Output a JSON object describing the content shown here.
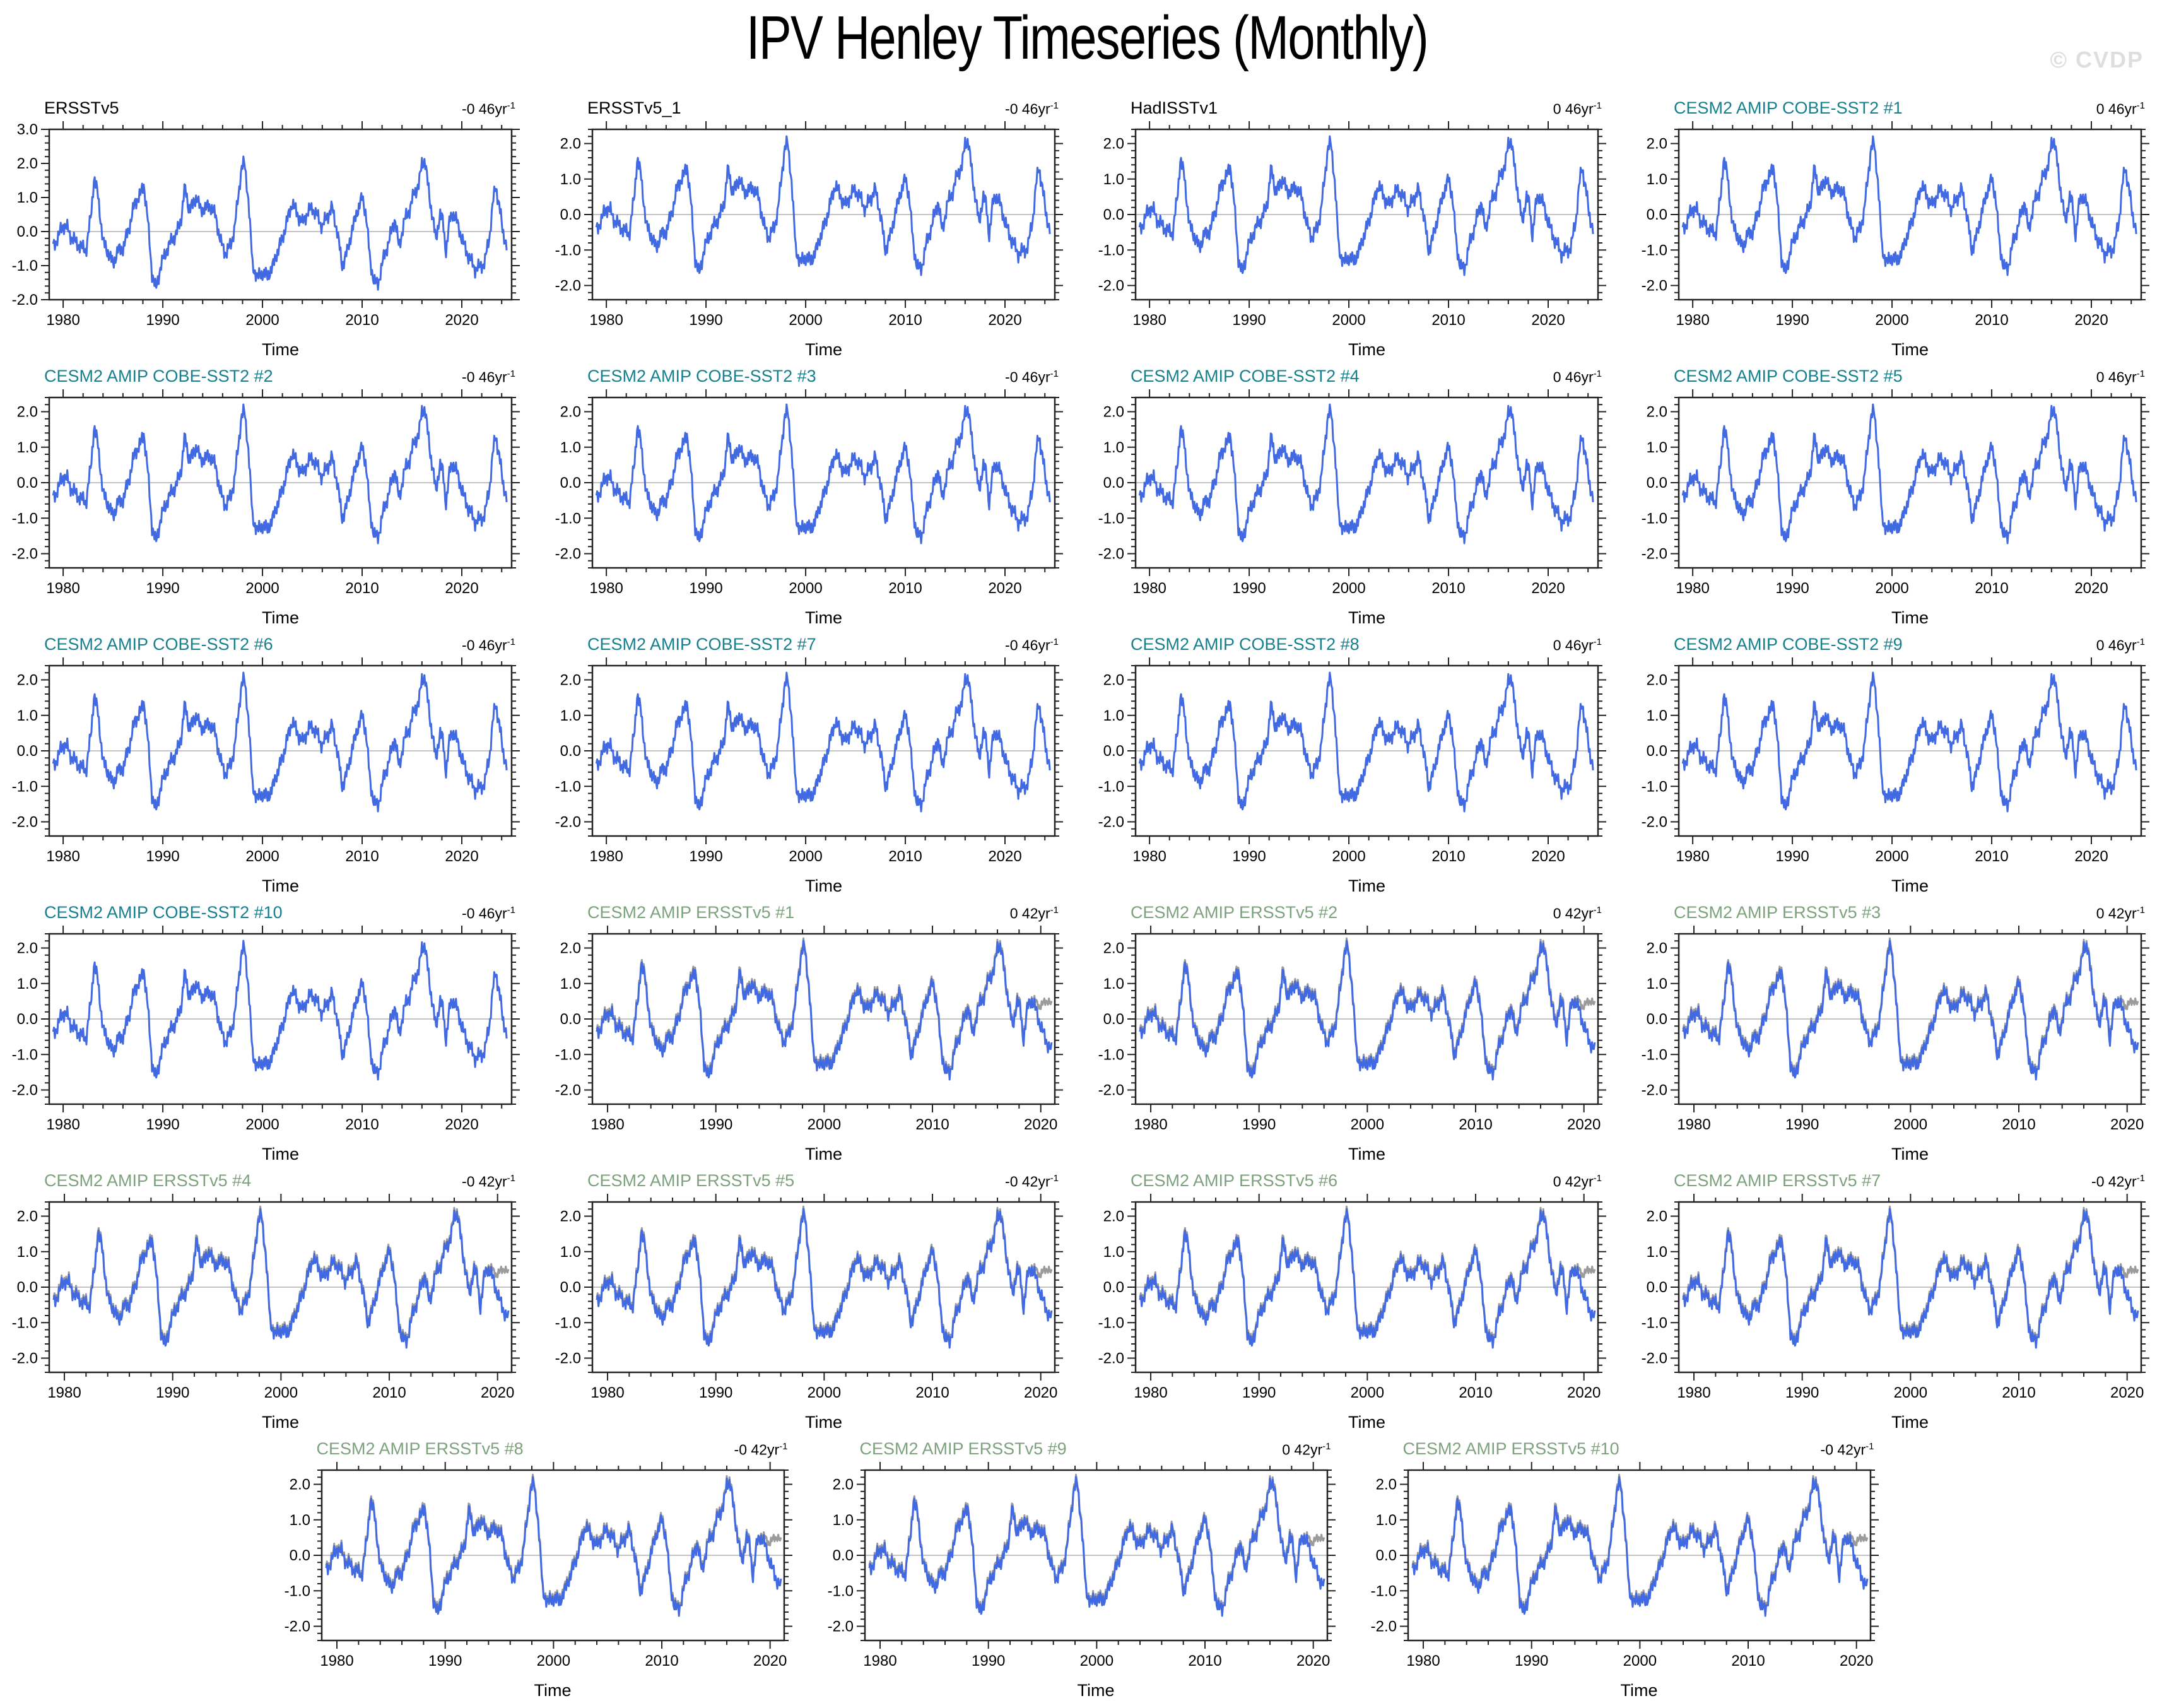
{
  "page": {
    "title": "IPV Henley Timeseries (Monthly)",
    "watermark": "© CVDP"
  },
  "colors": {
    "obs_title": "#000000",
    "cobe_title": "#16808F",
    "ersst_title": "#7DA27D",
    "series_line": "#4169E1",
    "obs_line": "#9B9B9B",
    "zero_line": "#B0B0B0",
    "frame": "#222222",
    "watermark": "#DEDEDE"
  },
  "axis": {
    "xlabel": "Time",
    "x_major_ticks": [
      1980,
      1990,
      2000,
      2010,
      2020
    ],
    "x_minor_step": 2,
    "y_major_step": 1.0,
    "y_minor_step": 0.2,
    "trend_unit": "yr",
    "trend_exp": "-1",
    "x_range_obs": [
      1978.6,
      2025.0
    ],
    "x_range_amip": [
      1978.6,
      2021.3
    ]
  },
  "panels": [
    {
      "title": "ERSSTv5",
      "color_key": "obs_title",
      "trend": "-0 46",
      "y_ticks": [
        3,
        2,
        1,
        0,
        -1,
        -2
      ],
      "ylim": [
        -2.0,
        3.0
      ],
      "group": "A"
    },
    {
      "title": "ERSSTv5_1",
      "color_key": "obs_title",
      "trend": "-0 46",
      "y_ticks": [
        2,
        1,
        0,
        -1,
        -2
      ],
      "ylim": [
        -2.4,
        2.4
      ],
      "group": "A"
    },
    {
      "title": "HadISSTv1",
      "color_key": "obs_title",
      "trend": "0 46",
      "y_ticks": [
        2,
        1,
        0,
        -1,
        -2
      ],
      "ylim": [
        -2.4,
        2.4
      ],
      "group": "A"
    },
    {
      "title": "CESM2 AMIP COBE-SST2 #1",
      "color_key": "cobe_title",
      "trend": "0 46",
      "y_ticks": [
        2,
        1,
        0,
        -1,
        -2
      ],
      "ylim": [
        -2.4,
        2.4
      ],
      "group": "A"
    },
    {
      "title": "CESM2 AMIP COBE-SST2 #2",
      "color_key": "cobe_title",
      "trend": "-0 46",
      "y_ticks": [
        2,
        1,
        0,
        -1,
        -2
      ],
      "ylim": [
        -2.4,
        2.4
      ],
      "group": "A"
    },
    {
      "title": "CESM2 AMIP COBE-SST2 #3",
      "color_key": "cobe_title",
      "trend": "-0 46",
      "y_ticks": [
        2,
        1,
        0,
        -1,
        -2
      ],
      "ylim": [
        -2.4,
        2.4
      ],
      "group": "A"
    },
    {
      "title": "CESM2 AMIP COBE-SST2 #4",
      "color_key": "cobe_title",
      "trend": "0 46",
      "y_ticks": [
        2,
        1,
        0,
        -1,
        -2
      ],
      "ylim": [
        -2.4,
        2.4
      ],
      "group": "A"
    },
    {
      "title": "CESM2 AMIP COBE-SST2 #5",
      "color_key": "cobe_title",
      "trend": "0 46",
      "y_ticks": [
        2,
        1,
        0,
        -1,
        -2
      ],
      "ylim": [
        -2.4,
        2.4
      ],
      "group": "A"
    },
    {
      "title": "CESM2 AMIP COBE-SST2 #6",
      "color_key": "cobe_title",
      "trend": "-0 46",
      "y_ticks": [
        2,
        1,
        0,
        -1,
        -2
      ],
      "ylim": [
        -2.4,
        2.4
      ],
      "group": "A"
    },
    {
      "title": "CESM2 AMIP COBE-SST2 #7",
      "color_key": "cobe_title",
      "trend": "-0 46",
      "y_ticks": [
        2,
        1,
        0,
        -1,
        -2
      ],
      "ylim": [
        -2.4,
        2.4
      ],
      "group": "A"
    },
    {
      "title": "CESM2 AMIP COBE-SST2 #8",
      "color_key": "cobe_title",
      "trend": "0 46",
      "y_ticks": [
        2,
        1,
        0,
        -1,
        -2
      ],
      "ylim": [
        -2.4,
        2.4
      ],
      "group": "A"
    },
    {
      "title": "CESM2 AMIP COBE-SST2 #9",
      "color_key": "cobe_title",
      "trend": "0 46",
      "y_ticks": [
        2,
        1,
        0,
        -1,
        -2
      ],
      "ylim": [
        -2.4,
        2.4
      ],
      "group": "A"
    },
    {
      "title": "CESM2 AMIP COBE-SST2 #10",
      "color_key": "cobe_title",
      "trend": "-0 46",
      "y_ticks": [
        2,
        1,
        0,
        -1,
        -2
      ],
      "ylim": [
        -2.4,
        2.4
      ],
      "group": "A"
    },
    {
      "title": "CESM2 AMIP ERSSTv5 #1",
      "color_key": "ersst_title",
      "trend": "0 42",
      "y_ticks": [
        2,
        1,
        0,
        -1,
        -2
      ],
      "ylim": [
        -2.4,
        2.4
      ],
      "group": "B"
    },
    {
      "title": "CESM2 AMIP ERSSTv5 #2",
      "color_key": "ersst_title",
      "trend": "0 42",
      "y_ticks": [
        2,
        1,
        0,
        -1,
        -2
      ],
      "ylim": [
        -2.4,
        2.4
      ],
      "group": "B"
    },
    {
      "title": "CESM2 AMIP ERSSTv5 #3",
      "color_key": "ersst_title",
      "trend": "0 42",
      "y_ticks": [
        2,
        1,
        0,
        -1,
        -2
      ],
      "ylim": [
        -2.4,
        2.4
      ],
      "group": "B"
    },
    {
      "title": "CESM2 AMIP ERSSTv5 #4",
      "color_key": "ersst_title",
      "trend": "-0 42",
      "y_ticks": [
        2,
        1,
        0,
        -1,
        -2
      ],
      "ylim": [
        -2.4,
        2.4
      ],
      "group": "B"
    },
    {
      "title": "CESM2 AMIP ERSSTv5 #5",
      "color_key": "ersst_title",
      "trend": "-0 42",
      "y_ticks": [
        2,
        1,
        0,
        -1,
        -2
      ],
      "ylim": [
        -2.4,
        2.4
      ],
      "group": "B"
    },
    {
      "title": "CESM2 AMIP ERSSTv5 #6",
      "color_key": "ersst_title",
      "trend": "0 42",
      "y_ticks": [
        2,
        1,
        0,
        -1,
        -2
      ],
      "ylim": [
        -2.4,
        2.4
      ],
      "group": "B"
    },
    {
      "title": "CESM2 AMIP ERSSTv5 #7",
      "color_key": "ersst_title",
      "trend": "-0 42",
      "y_ticks": [
        2,
        1,
        0,
        -1,
        -2
      ],
      "ylim": [
        -2.4,
        2.4
      ],
      "group": "B"
    },
    {
      "title": "CESM2 AMIP ERSSTv5 #8",
      "color_key": "ersst_title",
      "trend": "-0 42",
      "y_ticks": [
        2,
        1,
        0,
        -1,
        -2
      ],
      "ylim": [
        -2.4,
        2.4
      ],
      "group": "B"
    },
    {
      "title": "CESM2 AMIP ERSSTv5 #9",
      "color_key": "ersst_title",
      "trend": "0 42",
      "y_ticks": [
        2,
        1,
        0,
        -1,
        -2
      ],
      "ylim": [
        -2.4,
        2.4
      ],
      "group": "B"
    },
    {
      "title": "CESM2 AMIP ERSSTv5 #10",
      "color_key": "ersst_title",
      "trend": "-0 42",
      "y_ticks": [
        2,
        1,
        0,
        -1,
        -2
      ],
      "ylim": [
        -2.4,
        2.4
      ],
      "group": "B"
    }
  ],
  "rows": [
    4,
    4,
    4,
    4,
    4,
    3
  ],
  "chart_data": {
    "type": "line",
    "title": "IPV Henley Timeseries (Monthly)",
    "xlabel": "Time",
    "ylabel": "",
    "x_tick_labels": [
      1980,
      1990,
      2000,
      2010,
      2020
    ],
    "grid": false,
    "legend": "none",
    "n_panels": 23,
    "base_series": {
      "name": "IPV monthly index (anchor points, fractional year)",
      "x": [
        1979.0,
        1979.5,
        1980.0,
        1980.4,
        1980.8,
        1981.2,
        1981.8,
        1982.3,
        1982.8,
        1983.1,
        1983.5,
        1984.0,
        1984.5,
        1985.0,
        1985.5,
        1986.0,
        1986.6,
        1987.2,
        1987.8,
        1988.1,
        1988.5,
        1988.9,
        1989.3,
        1989.8,
        1990.3,
        1990.8,
        1991.3,
        1991.8,
        1992.2,
        1992.6,
        1993.0,
        1993.4,
        1993.8,
        1994.3,
        1994.8,
        1995.3,
        1995.8,
        1996.3,
        1996.8,
        1997.2,
        1997.6,
        1997.9,
        1998.2,
        1998.6,
        1999.0,
        1999.5,
        2000.0,
        2000.5,
        2001.0,
        2001.5,
        2002.0,
        2002.5,
        2003.0,
        2003.5,
        2004.0,
        2004.5,
        2005.0,
        2005.5,
        2006.0,
        2006.5,
        2007.0,
        2007.5,
        2008.0,
        2008.5,
        2009.0,
        2009.5,
        2010.0,
        2010.4,
        2010.8,
        2011.2,
        2011.6,
        2012.0,
        2012.5,
        2013.0,
        2013.3,
        2013.7,
        2014.2,
        2014.7,
        2015.2,
        2015.7,
        2016.0,
        2016.3,
        2016.8,
        2017.1,
        2017.4,
        2017.8,
        2018.1,
        2018.4,
        2018.8,
        2019.1,
        2019.5,
        2019.9,
        2020.4,
        2020.9,
        2021.3,
        2021.8,
        2022.3,
        2022.8,
        2023.1,
        2023.4,
        2023.8,
        2024.1,
        2024.6
      ],
      "y": [
        -0.45,
        -0.15,
        0.2,
        0.1,
        -0.15,
        -0.3,
        -0.45,
        -0.55,
        0.5,
        1.6,
        1.05,
        -0.3,
        -0.6,
        -0.95,
        -0.55,
        -0.5,
        0.1,
        0.85,
        1.1,
        1.4,
        0.3,
        -1.2,
        -1.7,
        -1.0,
        -0.6,
        -0.3,
        -0.1,
        0.3,
        1.3,
        0.7,
        0.75,
        1.05,
        0.6,
        0.7,
        0.75,
        0.45,
        -0.3,
        -0.65,
        -0.4,
        0.1,
        1.1,
        1.9,
        2.0,
        0.9,
        -1.0,
        -1.35,
        -1.2,
        -1.3,
        -1.05,
        -0.6,
        -0.2,
        0.35,
        0.85,
        0.5,
        0.25,
        0.55,
        0.7,
        0.45,
        0.15,
        0.45,
        0.7,
        0.0,
        -1.0,
        -0.6,
        0.05,
        0.6,
        1.0,
        0.5,
        -0.9,
        -1.45,
        -1.55,
        -0.95,
        -0.45,
        0.05,
        0.4,
        -0.5,
        0.3,
        0.6,
        1.1,
        1.4,
        2.0,
        2.1,
        0.9,
        0.4,
        -0.3,
        0.55,
        0.3,
        -0.6,
        0.35,
        0.55,
        0.3,
        -0.1,
        -0.55,
        -0.85,
        -1.1,
        -1.05,
        -0.9,
        -0.1,
        0.8,
        1.35,
        0.7,
        0.0,
        -0.5
      ]
    },
    "obs_overlay_tail": {
      "name": "gray observed overlay on AMIP ERSSTv5 panels (end of record)",
      "x": [
        2018.7,
        2019.1,
        2019.5,
        2019.9,
        2020.3,
        2020.7,
        2021.08
      ],
      "y": [
        0.3,
        0.6,
        0.5,
        0.35,
        0.45,
        0.55,
        0.3
      ]
    }
  }
}
